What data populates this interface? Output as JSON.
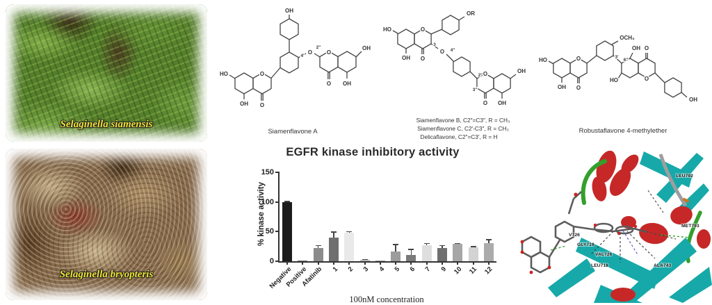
{
  "photos": [
    {
      "label": "Selaginella siamensis"
    },
    {
      "label": "Selaginella bryopteris"
    }
  ],
  "structures": {
    "s1": {
      "caption": "Siamenflavone A",
      "atoms": {
        "oh_top": "OH",
        "pos4": "4'",
        "o_bridge": "O",
        "pos2": "2''",
        "ho_left": "HO",
        "o_ring_left": "O",
        "oh_bottom_left": "OH",
        "o_keto_left": "O",
        "o_ring_right": "O",
        "oh_right": "OH",
        "o_keto_right": "O",
        "oh_bottom_right": "OH"
      }
    },
    "s2": {
      "caption_lines": [
        "Siamenflavone B, C2″=C3″, R = CH₃",
        "Siamenflavone C, C2′-C3″, R = CH₃",
        "Delicaflavone, C2″=C3′, R = H"
      ],
      "atoms": {
        "ho_left": "HO",
        "o_ring_left": "O",
        "oh_left": "OH",
        "o_keto_left": "O",
        "or_top": "OR",
        "pos3": "3",
        "o_bridge": "O",
        "pos4": "4''",
        "pos2": "2''",
        "pos3b": "3''",
        "o_ring_right": "O",
        "oh_right": "OH",
        "o_keto_right": "O",
        "oh_bottom_right": "OH"
      }
    },
    "s3": {
      "caption": "Robustaflavone 4-methylether",
      "atoms": {
        "ho_left": "HO",
        "o_ring_left": "O",
        "oh_left": "OH",
        "o_keto_left": "O",
        "och3": "OCH₃",
        "pos3": "3'",
        "pos6": "6''",
        "oh_mid_top": "OH",
        "o_keto_right": "O",
        "ho_mid": "HO",
        "o_ring_right": "O",
        "oh_far_right": "OH"
      }
    }
  },
  "chart_data": {
    "type": "bar",
    "title": "EGFR kinase inhibitory activity",
    "ylabel": "% kinase activity",
    "xlabel": "100nM concentration",
    "ylim": [
      0,
      150
    ],
    "yticks": [
      0,
      50,
      100,
      150
    ],
    "grid": false,
    "legend": null,
    "categories": [
      "Negative",
      "Positive",
      "Afatinib",
      "1",
      "2",
      "3",
      "4",
      "5",
      "6",
      "7",
      "9",
      "10",
      "11",
      "12"
    ],
    "values": [
      100,
      0.5,
      22,
      40,
      48,
      2.5,
      1,
      16,
      11,
      27,
      22,
      29,
      24,
      31
    ],
    "errors": [
      1.5,
      0,
      5,
      10,
      3,
      1.5,
      0.5,
      13,
      10,
      4,
      5,
      1,
      1.5,
      6
    ],
    "bar_colors": [
      "#1c1c1c",
      "#777777",
      "#8b8b8b",
      "#6f6f6f",
      "#e9e9e9",
      "#bbbbbb",
      "#999999",
      "#9c9c9c",
      "#7a7a7a",
      "#dedede",
      "#6f6f6f",
      "#a6a6a6",
      "#d3d3d3",
      "#ababab"
    ]
  },
  "docking": {
    "residues": [
      "LEU792",
      "MET793",
      "V726",
      "GLY719",
      "VAL726",
      "LEU718",
      "ALA743"
    ],
    "colors": {
      "sheet": "#17a9a9",
      "helix": "#c62828",
      "loop": "#33a02c",
      "ligand": "#5c5c5c",
      "oxygen": "#cc2222"
    }
  }
}
